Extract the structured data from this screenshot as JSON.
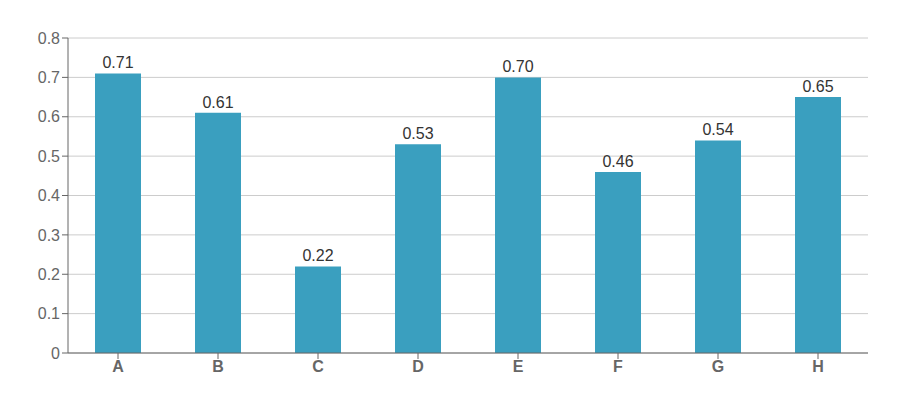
{
  "chart_data": {
    "type": "bar",
    "categories": [
      "A",
      "B",
      "C",
      "D",
      "E",
      "F",
      "G",
      "H"
    ],
    "values": [
      0.71,
      0.61,
      0.22,
      0.53,
      0.7,
      0.46,
      0.54,
      0.65
    ],
    "value_labels": [
      "0.71",
      "0.61",
      "0.22",
      "0.53",
      "0.70",
      "0.46",
      "0.54",
      "0.65"
    ],
    "color": "#3a9fbf",
    "ylim": [
      0,
      0.8
    ],
    "yticks": [
      0,
      0.1,
      0.2,
      0.3,
      0.4,
      0.5,
      0.6,
      0.7,
      0.8
    ],
    "grid": true,
    "data_labels": true
  }
}
